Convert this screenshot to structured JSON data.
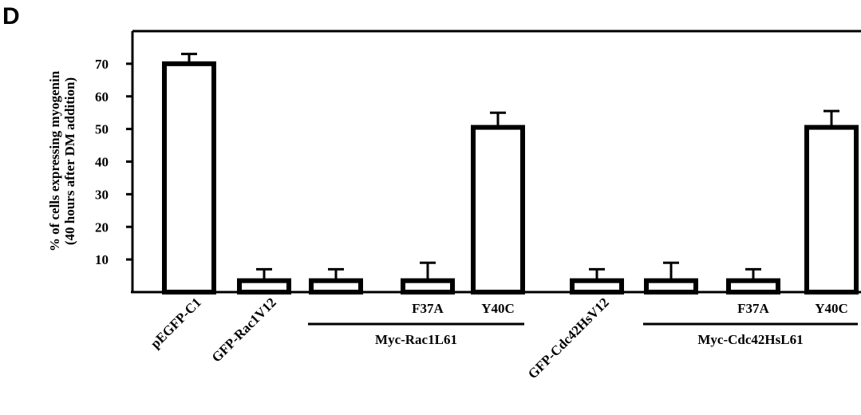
{
  "panel_letter": "D",
  "chart_data": {
    "type": "bar",
    "ylabel_lines": [
      "% of cells expressing myogenin",
      "(40 hours after DM addition)"
    ],
    "ylim": [
      0,
      80
    ],
    "yticks": [
      10,
      20,
      30,
      40,
      50,
      60,
      70
    ],
    "grid": false,
    "categories": [
      "pEGFP-C1",
      "GFP-Rac1V12",
      "",
      "F37A",
      "Y40C",
      "GFP-Cdc42HsV12",
      "",
      "F37A",
      "Y40C"
    ],
    "rotated_labels": [
      "pEGFP-C1",
      "GFP-Rac1V12",
      "",
      "",
      "",
      "GFP-Cdc42HsV12",
      "",
      "",
      ""
    ],
    "sub_labels": [
      "",
      "",
      "",
      "F37A",
      "Y40C",
      "",
      "",
      "F37A",
      "Y40C"
    ],
    "values": [
      70,
      3.5,
      3.5,
      3.5,
      50.5,
      3.5,
      3.5,
      3.5,
      50.5
    ],
    "errors": [
      3,
      3.5,
      3.5,
      5.5,
      4.5,
      3.5,
      5.5,
      3.5,
      5
    ],
    "groups": [
      {
        "label": "Myc-Rac1L61",
        "members": [
          2,
          3,
          4
        ]
      },
      {
        "label": "Myc-Cdc42HsL61",
        "members": [
          6,
          7,
          8
        ]
      }
    ],
    "bar_fill": "#ffffff",
    "stroke_color": "#000000"
  }
}
